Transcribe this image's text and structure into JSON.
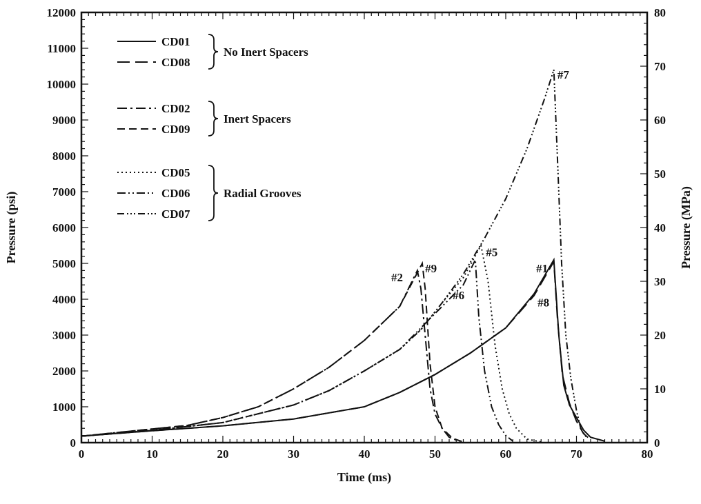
{
  "chart_data": {
    "type": "line",
    "xlabel": "Time (ms)",
    "ylabel": "Pressure (psi)",
    "ylabel_right": "Pressure (MPa)",
    "xlim": [
      0,
      80
    ],
    "ylim": [
      0,
      12000
    ],
    "ylim_right": [
      0,
      80
    ],
    "x_ticks": [
      "0",
      "10",
      "20",
      "30",
      "40",
      "50",
      "60",
      "70",
      "80"
    ],
    "y_ticks": [
      "0",
      "1000",
      "2000",
      "3000",
      "4000",
      "5000",
      "6000",
      "7000",
      "8000",
      "9000",
      "10000",
      "11000",
      "12000"
    ],
    "y_ticks_right": [
      "0",
      "10",
      "20",
      "30",
      "40",
      "50",
      "60",
      "70",
      "80"
    ],
    "grid": false,
    "legend_position": "top-left",
    "legend_groups": [
      {
        "label": "No Inert Spacers",
        "members": [
          "CD01",
          "CD08"
        ]
      },
      {
        "label": "Inert Spacers",
        "members": [
          "CD02",
          "CD09"
        ]
      },
      {
        "label": "Radial Grooves",
        "members": [
          "CD05",
          "CD06",
          "CD07"
        ]
      }
    ],
    "series": [
      {
        "name": "CD01",
        "dash": "solid",
        "points": [
          [
            0,
            180
          ],
          [
            10,
            330
          ],
          [
            20,
            470
          ],
          [
            30,
            660
          ],
          [
            40,
            1000
          ],
          [
            45,
            1400
          ],
          [
            50,
            1900
          ],
          [
            55,
            2500
          ],
          [
            60,
            3200
          ],
          [
            64,
            4150
          ],
          [
            66.8,
            5100
          ],
          [
            67.5,
            3000
          ],
          [
            68.2,
            1600
          ],
          [
            69,
            1050
          ],
          [
            70,
            700
          ],
          [
            71,
            350
          ],
          [
            72,
            150
          ],
          [
            74,
            40
          ]
        ]
      },
      {
        "name": "CD08",
        "dash": "long-dash",
        "points": [
          [
            0,
            180
          ],
          [
            10,
            330
          ],
          [
            20,
            470
          ],
          [
            30,
            660
          ],
          [
            40,
            1000
          ],
          [
            45,
            1400
          ],
          [
            50,
            1900
          ],
          [
            55,
            2500
          ],
          [
            60,
            3200
          ],
          [
            64,
            4100
          ],
          [
            66.8,
            5050
          ],
          [
            67.3,
            3500
          ],
          [
            68,
            1900
          ],
          [
            69,
            1100
          ],
          [
            70,
            600
          ],
          [
            71,
            250
          ],
          [
            72,
            80
          ]
        ]
      },
      {
        "name": "CD02",
        "dash": "dash-dot",
        "points": [
          [
            0,
            180
          ],
          [
            10,
            380
          ],
          [
            15,
            480
          ],
          [
            20,
            700
          ],
          [
            25,
            1000
          ],
          [
            30,
            1500
          ],
          [
            35,
            2100
          ],
          [
            40,
            2850
          ],
          [
            45,
            3800
          ],
          [
            47.5,
            4800
          ],
          [
            48,
            4300
          ],
          [
            48.6,
            3000
          ],
          [
            49.3,
            1500
          ],
          [
            50,
            800
          ],
          [
            51,
            400
          ],
          [
            52,
            150
          ],
          [
            53.5,
            30
          ]
        ]
      },
      {
        "name": "CD09",
        "dash": "dash",
        "points": [
          [
            0,
            180
          ],
          [
            10,
            380
          ],
          [
            15,
            480
          ],
          [
            20,
            700
          ],
          [
            25,
            1000
          ],
          [
            30,
            1500
          ],
          [
            35,
            2100
          ],
          [
            40,
            2850
          ],
          [
            45,
            3800
          ],
          [
            48.2,
            5000
          ],
          [
            48.6,
            4300
          ],
          [
            49.3,
            2200
          ],
          [
            50,
            1000
          ],
          [
            51,
            400
          ],
          [
            52.5,
            120
          ],
          [
            54,
            20
          ]
        ]
      },
      {
        "name": "CD05",
        "dash": "dotted",
        "points": [
          [
            0,
            180
          ],
          [
            10,
            340
          ],
          [
            20,
            560
          ],
          [
            30,
            1050
          ],
          [
            35,
            1450
          ],
          [
            40,
            2000
          ],
          [
            45,
            2600
          ],
          [
            48,
            3150
          ],
          [
            51,
            3900
          ],
          [
            54,
            4600
          ],
          [
            56.5,
            5500
          ],
          [
            57.5,
            4500
          ],
          [
            58.5,
            2700
          ],
          [
            59.5,
            1500
          ],
          [
            60.5,
            800
          ],
          [
            61.5,
            400
          ],
          [
            63,
            100
          ],
          [
            65,
            20
          ]
        ]
      },
      {
        "name": "CD06",
        "dash": "dash-dot-dot",
        "points": [
          [
            0,
            180
          ],
          [
            10,
            340
          ],
          [
            20,
            560
          ],
          [
            30,
            1050
          ],
          [
            35,
            1450
          ],
          [
            40,
            2000
          ],
          [
            45,
            2600
          ],
          [
            48,
            3200
          ],
          [
            51,
            3800
          ],
          [
            54,
            4400
          ],
          [
            55.7,
            5100
          ],
          [
            56.2,
            3500
          ],
          [
            57,
            2000
          ],
          [
            58,
            1000
          ],
          [
            59,
            500
          ],
          [
            60,
            200
          ],
          [
            61,
            40
          ]
        ]
      },
      {
        "name": "CD07",
        "dash": "dash-dot-dot-dot",
        "points": [
          [
            0,
            180
          ],
          [
            10,
            340
          ],
          [
            20,
            560
          ],
          [
            30,
            1050
          ],
          [
            35,
            1450
          ],
          [
            40,
            2000
          ],
          [
            45,
            2600
          ],
          [
            48,
            3150
          ],
          [
            51,
            3900
          ],
          [
            54,
            4700
          ],
          [
            57,
            5700
          ],
          [
            60,
            6800
          ],
          [
            63,
            8200
          ],
          [
            65.5,
            9600
          ],
          [
            66.8,
            10400
          ],
          [
            67.3,
            8000
          ],
          [
            67.9,
            5000
          ],
          [
            68.5,
            3000
          ],
          [
            69.2,
            1800
          ],
          [
            70,
            900
          ],
          [
            70.6,
            400
          ],
          [
            71.5,
            120
          ]
        ]
      }
    ],
    "annotations": [
      {
        "text": "#1",
        "x": 64.3,
        "y": 4750
      },
      {
        "text": "#8",
        "x": 64.5,
        "y": 3800
      },
      {
        "text": "#2",
        "x": 43.8,
        "y": 4500
      },
      {
        "text": "#9",
        "x": 48.6,
        "y": 4750
      },
      {
        "text": "#6",
        "x": 52.5,
        "y": 4000
      },
      {
        "text": "#5",
        "x": 57.2,
        "y": 5200
      },
      {
        "text": "#7",
        "x": 67.3,
        "y": 10150
      }
    ]
  }
}
